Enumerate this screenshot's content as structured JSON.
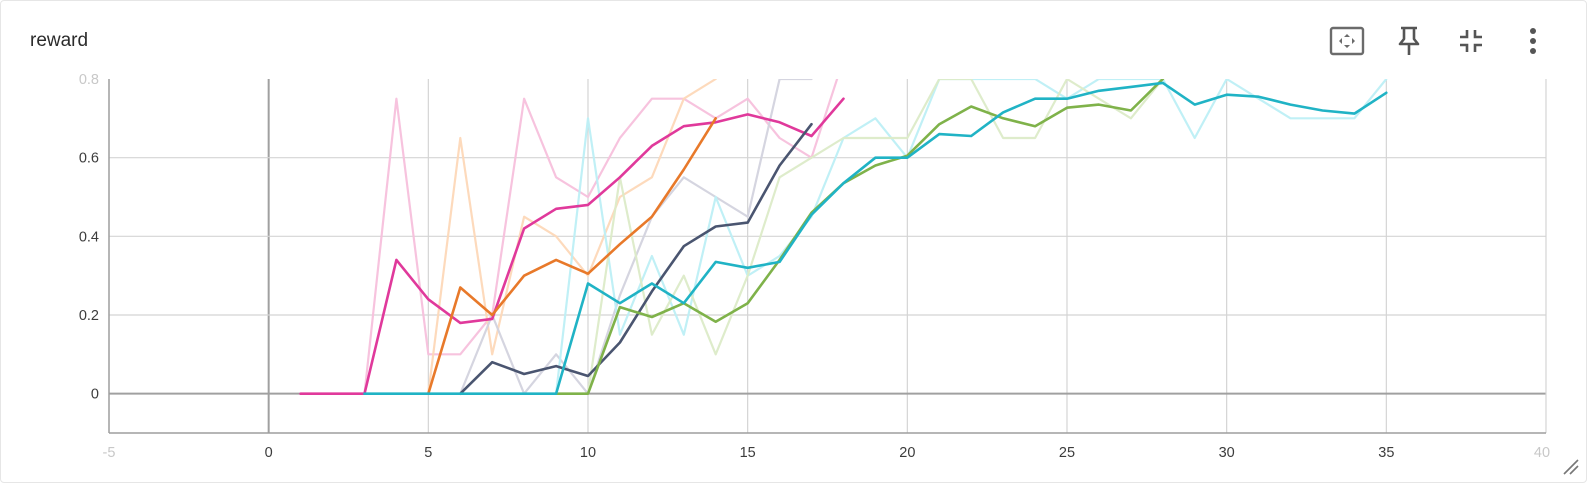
{
  "card": {
    "title": "reward",
    "toolbar": [
      {
        "name": "fit-domain-button",
        "icon": "fit-to-data-icon"
      },
      {
        "name": "pin-button",
        "icon": "pin-icon"
      },
      {
        "name": "collapse-button",
        "icon": "collapse-icon"
      },
      {
        "name": "more-options-button",
        "icon": "more-vert-icon"
      }
    ]
  },
  "colors": {
    "grid": "#d4d4d4",
    "axis": "#9e9e9e",
    "zero_line": "#a0a0a0"
  },
  "chart_data": {
    "type": "line",
    "title": "",
    "xlabel": "",
    "ylabel": "",
    "xlim": [
      -5,
      40
    ],
    "ylim": [
      -0.1,
      0.8
    ],
    "x_ticks": [
      0,
      5,
      10,
      15,
      20,
      25,
      30,
      35
    ],
    "x_tick_labels": [
      "0",
      "5",
      "10",
      "15",
      "20",
      "25",
      "30",
      "35"
    ],
    "edge_tick_labels": {
      "left": "-5",
      "right": "40",
      "top": "0.8"
    },
    "y_ticks": [
      0,
      0.2,
      0.4,
      0.6
    ],
    "y_tick_labels": [
      "0",
      "0.2",
      "0.4",
      "0.6"
    ],
    "grid": true,
    "legend": "none",
    "series": [
      {
        "color": "#f7c0dc",
        "opacity": 0.95,
        "width": 2.2,
        "x": [
          1,
          2,
          3,
          4,
          5,
          6,
          7,
          8,
          9,
          10,
          11,
          12,
          13,
          14,
          15,
          16,
          17,
          18
        ],
        "y": [
          0,
          0,
          0,
          0.75,
          0.1,
          0.1,
          0.2,
          0.75,
          0.55,
          0.5,
          0.65,
          0.75,
          0.75,
          0.7,
          0.75,
          0.65,
          0.6,
          0.85
        ]
      },
      {
        "color": "#fdd8b8",
        "opacity": 0.95,
        "width": 2.2,
        "x": [
          5,
          6,
          7,
          8,
          9,
          10,
          11,
          12,
          13,
          14
        ],
        "y": [
          0,
          0.65,
          0.1,
          0.45,
          0.4,
          0.3,
          0.5,
          0.55,
          0.75,
          0.8
        ]
      },
      {
        "color": "#d3d3de",
        "opacity": 0.95,
        "width": 2.2,
        "x": [
          6,
          7,
          8,
          9,
          10,
          11,
          12,
          13,
          14,
          15,
          16,
          17
        ],
        "y": [
          0,
          0.2,
          0,
          0.1,
          0,
          0.25,
          0.45,
          0.55,
          0.5,
          0.45,
          0.8,
          0.8
        ]
      },
      {
        "color": "#bdeff6",
        "opacity": 0.95,
        "width": 2.2,
        "x": [
          3,
          4,
          5,
          6,
          7,
          8,
          9,
          10,
          11,
          12,
          13,
          14,
          15,
          16,
          17,
          18,
          19,
          20,
          21,
          22,
          23,
          24,
          25,
          26,
          27,
          28,
          29,
          30,
          31,
          32,
          33,
          34,
          35
        ],
        "y": [
          0,
          0,
          0,
          0,
          0,
          0,
          0,
          0.7,
          0.15,
          0.35,
          0.15,
          0.5,
          0.3,
          0.35,
          0.45,
          0.65,
          0.7,
          0.6,
          0.8,
          0.8,
          0.8,
          0.8,
          0.75,
          0.8,
          0.8,
          0.8,
          0.65,
          0.8,
          0.75,
          0.7,
          0.7,
          0.7,
          0.8
        ]
      },
      {
        "color": "#dcebc8",
        "opacity": 0.95,
        "width": 2.2,
        "x": [
          9,
          10,
          11,
          12,
          13,
          14,
          15,
          16,
          17,
          18,
          19,
          20,
          21,
          22,
          23,
          24,
          25,
          26,
          27,
          28
        ],
        "y": [
          0,
          0,
          0.55,
          0.15,
          0.3,
          0.1,
          0.3,
          0.55,
          0.6,
          0.65,
          0.65,
          0.65,
          0.8,
          0.8,
          0.65,
          0.65,
          0.8,
          0.75,
          0.7,
          0.8
        ]
      },
      {
        "color": "#e0399b",
        "opacity": 1,
        "width": 2.6,
        "x": [
          1,
          2,
          3,
          4,
          5,
          6,
          7,
          8,
          9,
          10,
          11,
          12,
          13,
          14,
          15,
          16,
          17,
          18
        ],
        "y": [
          0,
          0,
          0,
          0.34,
          0.24,
          0.18,
          0.19,
          0.42,
          0.47,
          0.48,
          0.55,
          0.63,
          0.68,
          0.69,
          0.71,
          0.69,
          0.655,
          0.75
        ]
      },
      {
        "color": "#e8792a",
        "opacity": 1,
        "width": 2.6,
        "x": [
          5,
          6,
          7,
          8,
          9,
          10,
          11,
          12,
          13,
          14
        ],
        "y": [
          0,
          0.27,
          0.2,
          0.3,
          0.34,
          0.305,
          0.38,
          0.45,
          0.57,
          0.7
        ]
      },
      {
        "color": "#4a5570",
        "opacity": 1,
        "width": 2.6,
        "x": [
          6,
          7,
          8,
          9,
          10,
          11,
          12,
          13,
          14,
          15,
          16,
          17
        ],
        "y": [
          0,
          0.08,
          0.05,
          0.07,
          0.045,
          0.13,
          0.26,
          0.375,
          0.425,
          0.435,
          0.58,
          0.685
        ]
      },
      {
        "color": "#7fb24a",
        "opacity": 1,
        "width": 2.6,
        "x": [
          9,
          10,
          11,
          12,
          13,
          14,
          15,
          16,
          17,
          18,
          19,
          20,
          21,
          22,
          23,
          24,
          25,
          26,
          27,
          28
        ],
        "y": [
          0,
          0,
          0.22,
          0.195,
          0.23,
          0.183,
          0.23,
          0.34,
          0.46,
          0.535,
          0.58,
          0.605,
          0.685,
          0.73,
          0.7,
          0.68,
          0.727,
          0.735,
          0.72,
          0.8
        ]
      },
      {
        "color": "#20b3c5",
        "opacity": 1,
        "width": 2.6,
        "x": [
          3,
          4,
          5,
          6,
          7,
          8,
          9,
          10,
          11,
          12,
          13,
          14,
          15,
          16,
          17,
          18,
          19,
          20,
          21,
          22,
          23,
          24,
          25,
          26,
          27,
          28,
          29,
          30,
          31,
          32,
          33,
          34,
          35
        ],
        "y": [
          0,
          0,
          0,
          0,
          0,
          0,
          0,
          0.28,
          0.23,
          0.28,
          0.23,
          0.335,
          0.32,
          0.335,
          0.455,
          0.535,
          0.6,
          0.6,
          0.66,
          0.655,
          0.715,
          0.75,
          0.75,
          0.77,
          0.78,
          0.79,
          0.735,
          0.76,
          0.755,
          0.735,
          0.72,
          0.712,
          0.765
        ]
      }
    ]
  }
}
